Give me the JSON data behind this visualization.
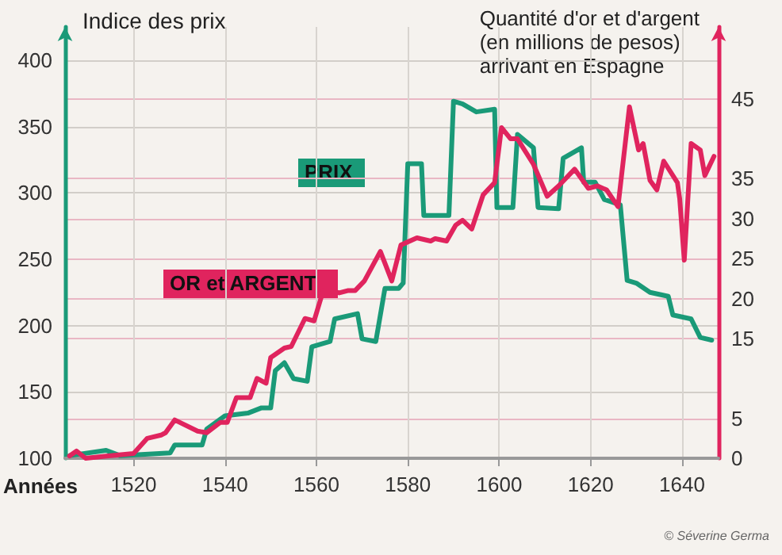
{
  "chart_data": {
    "type": "line",
    "ylabel": "Indice des prix",
    "y2label": "Quantité d'or et d'argent\n(en millions de pesos)\narrivant en Espagne",
    "xlabel": "Années",
    "annotations": [
      "© Séverine Germa"
    ],
    "xlim": [
      1505,
      1648
    ],
    "xticks": [
      1520,
      1540,
      1560,
      1580,
      1600,
      1620,
      1640
    ],
    "ylim": [
      100,
      425
    ],
    "yticks": [
      100,
      150,
      200,
      250,
      300,
      350,
      400
    ],
    "y2lim": [
      0,
      54
    ],
    "y2ticks": [
      0,
      5,
      15,
      20,
      25,
      30,
      35,
      45
    ],
    "grid": true,
    "legend": false,
    "marker": "none",
    "line_style": "solid",
    "series": [
      {
        "name": "PRIX",
        "color": "#1a9a78",
        "x": [
          1506,
          1514,
          1517,
          1528,
          1529,
          1535,
          1536,
          1540,
          1545,
          1548,
          1550,
          1551,
          1553,
          1555,
          1558,
          1559,
          1563,
          1564,
          1569,
          1570,
          1573,
          1575,
          1578,
          1579,
          1580,
          1583,
          1583.5,
          1589,
          1590,
          1592,
          1595,
          1599,
          1599.5,
          1603,
          1604,
          1607.5,
          1608.5,
          1613,
          1614,
          1618,
          1618.5,
          1621,
          1623,
          1626.5,
          1628,
          1630,
          1633,
          1637,
          1638,
          1642,
          1644,
          1646.5
        ],
        "values": [
          102,
          106,
          102,
          104,
          110,
          110,
          122,
          132,
          134,
          138,
          138,
          166,
          172,
          160,
          158,
          184,
          188,
          205,
          209,
          190,
          188,
          228,
          228,
          232,
          322,
          322,
          283,
          283,
          369,
          367,
          361,
          363,
          289,
          289,
          344,
          334,
          289,
          288,
          326,
          334,
          308,
          308,
          295,
          291,
          234,
          232,
          225,
          222,
          208,
          205,
          191,
          189
        ]
      },
      {
        "name": "OR et ARGENT",
        "color": "#e0245e",
        "axis": "y2",
        "x": [
          1506,
          1507.5,
          1509.5,
          1514.5,
          1520,
          1523,
          1526,
          1527,
          1529,
          1534,
          1536,
          1539,
          1540.5,
          1542.5,
          1545.5,
          1547,
          1549,
          1550,
          1553,
          1554.5,
          1557.5,
          1559.5,
          1561.5,
          1563,
          1565,
          1567,
          1568.5,
          1570.5,
          1574,
          1576.5,
          1578.5,
          1582,
          1585,
          1586,
          1588.5,
          1590.5,
          1592,
          1594,
          1596.5,
          1599,
          1600.5,
          1602.5,
          1604,
          1607.5,
          1610.5,
          1613,
          1616.5,
          1619.5,
          1621.5,
          1623.5,
          1626,
          1628.5,
          1630.5,
          1631.5,
          1633,
          1634.5,
          1636,
          1639,
          1639.5,
          1640.5,
          1642,
          1644,
          1645,
          1647
        ],
        "values": [
          0.3,
          0.9,
          0,
          0.3,
          0.6,
          2.5,
          2.9,
          3.2,
          4.8,
          3.4,
          3.2,
          4.5,
          4.5,
          7.6,
          7.6,
          10,
          9.4,
          12.6,
          13.8,
          14,
          17.5,
          17.2,
          21,
          21,
          20.7,
          21,
          21,
          22.2,
          25.9,
          22.2,
          26.7,
          27.6,
          27.2,
          27.5,
          27.2,
          29.2,
          29.8,
          28.7,
          33,
          34.5,
          41.4,
          40,
          40,
          36.8,
          32.8,
          34.1,
          36.2,
          33.8,
          34.1,
          33.6,
          31.5,
          44,
          38.6,
          39.4,
          34.8,
          33.6,
          37.2,
          34.5,
          32.5,
          24.8,
          39.4,
          38.6,
          35.4,
          37.8
        ]
      }
    ]
  }
}
